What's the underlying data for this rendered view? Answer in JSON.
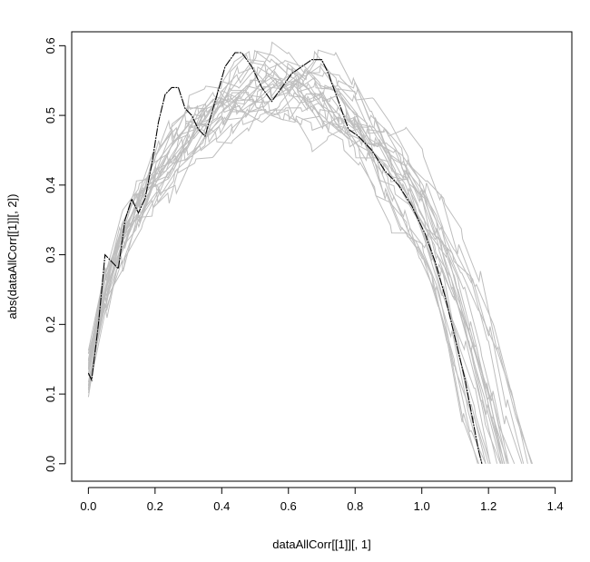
{
  "chart_data": {
    "type": "line",
    "title": "",
    "xlabel": "dataAllCorr[[1]][, 1]",
    "ylabel": "abs(dataAllCorr[[1]][, 2])",
    "xlim": [
      -0.05,
      1.45
    ],
    "ylim": [
      -0.025,
      0.62
    ],
    "x_ticks": [
      "0.0",
      "0.2",
      "0.4",
      "0.6",
      "0.8",
      "1.0",
      "1.2",
      "1.4"
    ],
    "y_ticks": [
      "0.0",
      "0.1",
      "0.2",
      "0.3",
      "0.4",
      "0.5",
      "0.6"
    ],
    "grid": false,
    "legend": "none",
    "colors": {
      "highlight": "#000000",
      "background_series": "#bebebe"
    },
    "highlight_series": {
      "x": [
        0.0,
        0.01,
        0.02,
        0.03,
        0.04,
        0.05,
        0.07,
        0.09,
        0.11,
        0.13,
        0.15,
        0.17,
        0.19,
        0.21,
        0.23,
        0.25,
        0.27,
        0.29,
        0.31,
        0.33,
        0.35,
        0.38,
        0.41,
        0.44,
        0.46,
        0.49,
        0.52,
        0.55,
        0.58,
        0.61,
        0.64,
        0.67,
        0.7,
        0.72,
        0.75,
        0.78,
        0.81,
        0.85,
        0.89,
        0.93,
        0.97,
        1.01,
        1.04,
        1.07,
        1.1,
        1.13,
        1.15,
        1.17,
        1.18
      ],
      "y": [
        0.13,
        0.12,
        0.16,
        0.2,
        0.25,
        0.3,
        0.29,
        0.28,
        0.35,
        0.38,
        0.36,
        0.38,
        0.43,
        0.49,
        0.53,
        0.54,
        0.54,
        0.51,
        0.5,
        0.48,
        0.47,
        0.52,
        0.57,
        0.59,
        0.59,
        0.57,
        0.54,
        0.52,
        0.54,
        0.56,
        0.57,
        0.58,
        0.58,
        0.56,
        0.52,
        0.48,
        0.47,
        0.45,
        0.42,
        0.4,
        0.37,
        0.33,
        0.29,
        0.24,
        0.18,
        0.12,
        0.07,
        0.02,
        0.0
      ]
    },
    "background_series_count": 24,
    "background_envelope": {
      "x": [
        0.0,
        0.05,
        0.1,
        0.15,
        0.2,
        0.25,
        0.3,
        0.35,
        0.4,
        0.45,
        0.5,
        0.55,
        0.6,
        0.65,
        0.7,
        0.75,
        0.8,
        0.85,
        0.9,
        0.95,
        1.0,
        1.05,
        1.1,
        1.15,
        1.2,
        1.25
      ],
      "y": [
        0.13,
        0.25,
        0.32,
        0.37,
        0.41,
        0.44,
        0.47,
        0.49,
        0.51,
        0.525,
        0.535,
        0.54,
        0.54,
        0.535,
        0.525,
        0.51,
        0.49,
        0.465,
        0.435,
        0.4,
        0.36,
        0.31,
        0.25,
        0.17,
        0.08,
        0.0
      ]
    }
  }
}
